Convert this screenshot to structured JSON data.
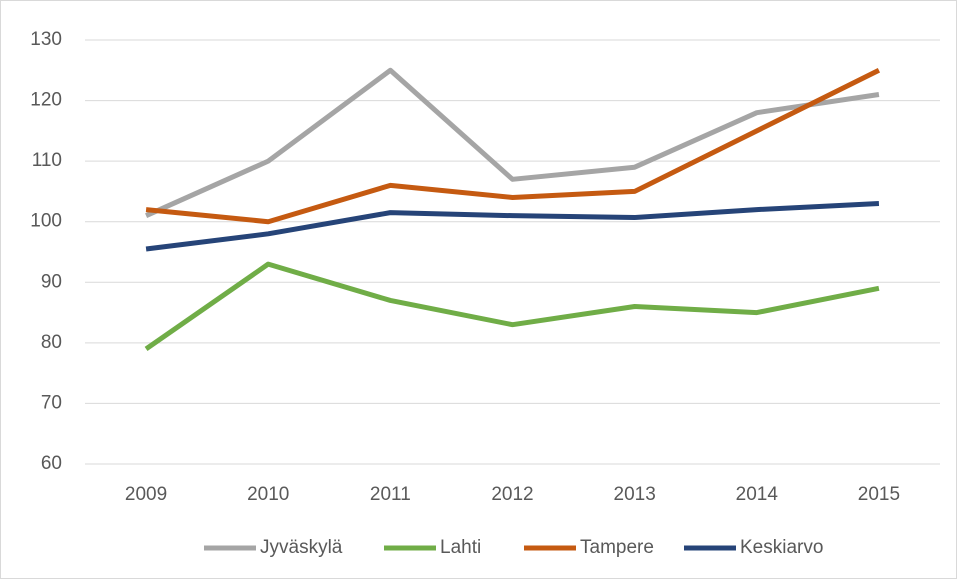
{
  "chart_data": {
    "type": "line",
    "categories": [
      "2009",
      "2010",
      "2011",
      "2012",
      "2013",
      "2014",
      "2015"
    ],
    "series": [
      {
        "name": "Jyväskylä",
        "color": "#a5a5a5",
        "values": [
          101,
          110,
          125,
          107,
          109,
          118,
          121
        ]
      },
      {
        "name": "Lahti",
        "color": "#70ad47",
        "values": [
          79,
          93,
          87,
          83,
          86,
          85,
          89
        ]
      },
      {
        "name": "Tampere",
        "color": "#c55a11",
        "values": [
          102,
          100,
          106,
          104,
          105,
          115,
          125
        ]
      },
      {
        "name": "Keskiarvo",
        "color": "#264478",
        "values": [
          95.5,
          98,
          101.5,
          101,
          100.7,
          102,
          103
        ]
      }
    ],
    "ylim": [
      60,
      130
    ],
    "yticks": [
      60,
      70,
      80,
      90,
      100,
      110,
      120,
      130
    ],
    "grid": true,
    "legend": "bottom"
  }
}
